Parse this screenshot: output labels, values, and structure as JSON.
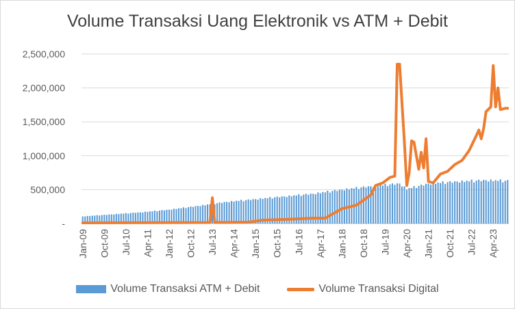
{
  "chart_data": {
    "type": "bar",
    "title": "Volume Transaksi Uang Elektronik vs ATM + Debit",
    "xlabel": "",
    "ylabel": "",
    "ylim": [
      0,
      2500000
    ],
    "y_ticks": [
      "-",
      "500,000",
      "1,000,000",
      "1,500,000",
      "2,000,000",
      "2,500,000"
    ],
    "x_tick_labels": [
      "Jan-09",
      "Oct-09",
      "Jul-10",
      "Apr-11",
      "Jan-12",
      "Oct-12",
      "Jul-13",
      "Apr-14",
      "Jan-15",
      "Oct-15",
      "Jul-16",
      "Apr-17",
      "Jan-18",
      "Oct-18",
      "Jul-19",
      "Apr-20",
      "Jan-21",
      "Oct-21",
      "Jul-22",
      "Apr-23"
    ],
    "x_start": "Jan-09",
    "x_end": "Oct-23",
    "x_frequency": "monthly",
    "grid": true,
    "legend_position": "bottom",
    "series": [
      {
        "name": "Volume Transaksi ATM + Debit",
        "type": "bar",
        "color": "#5b9bd5",
        "sampled_points": [
          {
            "x": "Jan-09",
            "y": 105000
          },
          {
            "x": "Jan-10",
            "y": 135000
          },
          {
            "x": "Jan-11",
            "y": 165000
          },
          {
            "x": "Jan-12",
            "y": 205000
          },
          {
            "x": "Jan-13",
            "y": 260000
          },
          {
            "x": "Jan-14",
            "y": 320000
          },
          {
            "x": "Jan-15",
            "y": 360000
          },
          {
            "x": "Jan-16",
            "y": 400000
          },
          {
            "x": "Jan-17",
            "y": 440000
          },
          {
            "x": "Jan-18",
            "y": 500000
          },
          {
            "x": "Jan-19",
            "y": 550000
          },
          {
            "x": "Jan-20",
            "y": 590000
          },
          {
            "x": "Apr-20",
            "y": 510000
          },
          {
            "x": "Jan-21",
            "y": 590000
          },
          {
            "x": "Jan-22",
            "y": 620000
          },
          {
            "x": "Jan-23",
            "y": 640000
          },
          {
            "x": "Oct-23",
            "y": 630000
          }
        ]
      },
      {
        "name": "Volume Transaksi Digital",
        "type": "line",
        "color": "#ed7d31",
        "sampled_points": [
          {
            "x": "Jan-09",
            "y": 10000
          },
          {
            "x": "Jun-13",
            "y": 15000
          },
          {
            "x": "Jul-13",
            "y": 380000
          },
          {
            "x": "Aug-13",
            "y": 15000
          },
          {
            "x": "Oct-14",
            "y": 20000
          },
          {
            "x": "Apr-15",
            "y": 50000
          },
          {
            "x": "Jan-16",
            "y": 60000
          },
          {
            "x": "Jan-17",
            "y": 80000
          },
          {
            "x": "Jun-17",
            "y": 80000
          },
          {
            "x": "Jan-18",
            "y": 220000
          },
          {
            "x": "Jul-18",
            "y": 270000
          },
          {
            "x": "Jan-19",
            "y": 420000
          },
          {
            "x": "Mar-19",
            "y": 560000
          },
          {
            "x": "Jun-19",
            "y": 600000
          },
          {
            "x": "Sep-19",
            "y": 680000
          },
          {
            "x": "Nov-19",
            "y": 700000
          },
          {
            "x": "Dec-19",
            "y": 2350000
          },
          {
            "x": "Jan-20",
            "y": 2350000
          },
          {
            "x": "Mar-20",
            "y": 1200000
          },
          {
            "x": "Apr-20",
            "y": 560000
          },
          {
            "x": "May-20",
            "y": 750000
          },
          {
            "x": "Jun-20",
            "y": 1220000
          },
          {
            "x": "Jul-20",
            "y": 1200000
          },
          {
            "x": "Aug-20",
            "y": 1000000
          },
          {
            "x": "Sep-20",
            "y": 800000
          },
          {
            "x": "Oct-20",
            "y": 1050000
          },
          {
            "x": "Nov-20",
            "y": 820000
          },
          {
            "x": "Dec-20",
            "y": 1250000
          },
          {
            "x": "Jan-21",
            "y": 620000
          },
          {
            "x": "Mar-21",
            "y": 600000
          },
          {
            "x": "Jun-21",
            "y": 730000
          },
          {
            "x": "Sep-21",
            "y": 770000
          },
          {
            "x": "Dec-21",
            "y": 870000
          },
          {
            "x": "Mar-22",
            "y": 930000
          },
          {
            "x": "Jun-22",
            "y": 1080000
          },
          {
            "x": "Sep-22",
            "y": 1300000
          },
          {
            "x": "Oct-22",
            "y": 1380000
          },
          {
            "x": "Nov-22",
            "y": 1250000
          },
          {
            "x": "Dec-22",
            "y": 1400000
          },
          {
            "x": "Jan-23",
            "y": 1650000
          },
          {
            "x": "Mar-23",
            "y": 1720000
          },
          {
            "x": "Apr-23",
            "y": 2330000
          },
          {
            "x": "May-23",
            "y": 1720000
          },
          {
            "x": "Jun-23",
            "y": 2000000
          },
          {
            "x": "Jul-23",
            "y": 1680000
          },
          {
            "x": "Sep-23",
            "y": 1700000
          },
          {
            "x": "Oct-23",
            "y": 1700000
          }
        ]
      }
    ]
  }
}
